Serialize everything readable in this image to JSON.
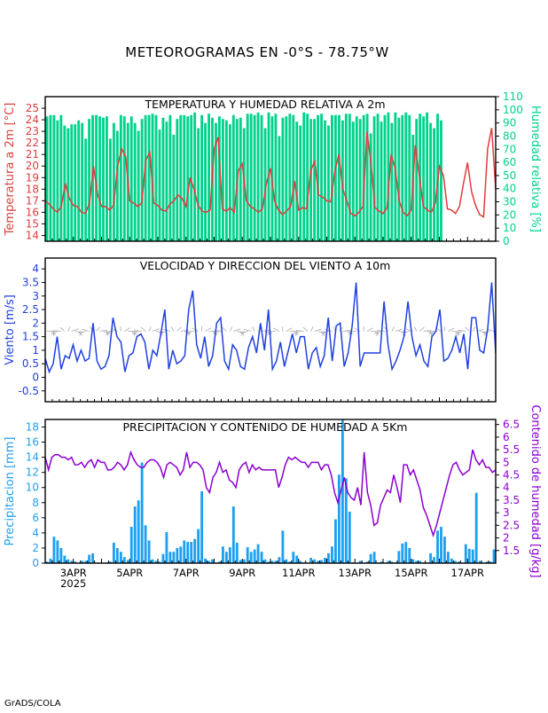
{
  "title": "METEOROGRAMAS EN -0°S - 78.75°W",
  "footer": "GrADS/COLA",
  "colors": {
    "temperature": "#e03c3c",
    "humidity": "#00d28c",
    "wind": "#2040e0",
    "wind_arrows": "#aaaaaa",
    "precip": "#1ea0f0",
    "moisture": "#8c00d2",
    "frame": "#000000"
  },
  "x_axis": {
    "ticks": [
      "3APR",
      "5APR",
      "7APR",
      "9APR",
      "11APR",
      "13APR",
      "15APR",
      "17APR"
    ],
    "year": "2025"
  },
  "chart_data": [
    {
      "type": "line",
      "title": "TEMPERATURA Y HUMEDAD RELATIVA A 2m",
      "ylabel": "Temperatura a 2m [°C]",
      "y2label": "Humedad relativa [%]",
      "ylim": [
        13.5,
        26
      ],
      "y2lim": [
        0,
        110
      ],
      "yticks": [
        "14",
        "15",
        "16",
        "17",
        "18",
        "19",
        "20",
        "21",
        "22",
        "23",
        "24",
        "25"
      ],
      "y2ticks": [
        "0",
        "10",
        "20",
        "30",
        "40",
        "50",
        "60",
        "70",
        "80",
        "90",
        "100",
        "110"
      ],
      "x_start_day": 2.0,
      "x_step_hours": 3,
      "series": [
        {
          "kind": "line",
          "axis": "left",
          "values": [
            17.0,
            16.7,
            16.3,
            16.0,
            16.5,
            18.5,
            17.2,
            16.6,
            16.5,
            16.0,
            15.9,
            16.8,
            20.0,
            17.6,
            16.5,
            16.5,
            16.2,
            16.6,
            20.0,
            21.5,
            20.8,
            17.0,
            16.8,
            16.5,
            16.8,
            20.5,
            21.2,
            16.8,
            16.6,
            16.2,
            16.1,
            16.7,
            17.0,
            17.5,
            17.2,
            16.5,
            19.0,
            18.0,
            16.6,
            16.1,
            16.0,
            16.2,
            21.5,
            22.5,
            16.3,
            16.1,
            16.4,
            16.0,
            19.6,
            20.2,
            17.0,
            16.5,
            16.3,
            16.0,
            16.3,
            18.5,
            19.8,
            17.0,
            16.2,
            15.8,
            16.1,
            16.5,
            18.7,
            16.2,
            16.4,
            16.3,
            19.6,
            20.4,
            17.5,
            17.3,
            17.0,
            16.9,
            19.5,
            21.0,
            18.0,
            17.0,
            15.9,
            15.7,
            16.0,
            16.5,
            23.0,
            20.2,
            16.4,
            16.1,
            15.9,
            16.4,
            21.0,
            19.8,
            17.0,
            16.0,
            15.7,
            16.2,
            21.8,
            19.2,
            16.5,
            16.2,
            16.0,
            16.8,
            20.0,
            19.2,
            16.3,
            16.2,
            15.9,
            16.5,
            18.5,
            20.3,
            17.8,
            16.6,
            15.8,
            15.6,
            21.5,
            23.3,
            18.0
          ]
        },
        {
          "kind": "bar",
          "axis": "right",
          "values": [
            95,
            96,
            96,
            92,
            96,
            88,
            86,
            89,
            89,
            92,
            90,
            78,
            93,
            96,
            96,
            95,
            94,
            95,
            78,
            90,
            84,
            96,
            95,
            90,
            95,
            90,
            84,
            93,
            96,
            96,
            97,
            96,
            85,
            94,
            91,
            96,
            81,
            93,
            96,
            96,
            95,
            96,
            98,
            86,
            96,
            90,
            97,
            94,
            90,
            95,
            93,
            92,
            89,
            96,
            93,
            94,
            86,
            97,
            97,
            96,
            98,
            96,
            86,
            98,
            95,
            97,
            80,
            94,
            95,
            97,
            96,
            91,
            88,
            98,
            97,
            93,
            93,
            96,
            97,
            92,
            88,
            96,
            96,
            96,
            92,
            97,
            97,
            91,
            95,
            93,
            96,
            97,
            82,
            95,
            97,
            91,
            96,
            98,
            90,
            98,
            94,
            96,
            98,
            96,
            81,
            93,
            97,
            95,
            98,
            90,
            86,
            97,
            92
          ]
        }
      ]
    },
    {
      "type": "line",
      "title": "VELOCIDAD Y DIRECCION DEL VIENTO A 10m",
      "ylabel": "Viento [m/s]",
      "ylim": [
        -0.9,
        4.4
      ],
      "yticks": [
        "-0.5",
        "0",
        "0.5",
        "1",
        "1.5",
        "2",
        "2.5",
        "3",
        "3.5",
        "4"
      ],
      "x_start_day": 2.0,
      "x_step_hours": 3,
      "series": [
        {
          "kind": "line",
          "values": [
            0.7,
            0.2,
            0.5,
            1.5,
            0.3,
            0.8,
            0.7,
            1.2,
            0.6,
            1.0,
            0.6,
            0.7,
            2.0,
            0.6,
            0.3,
            0.4,
            0.8,
            2.2,
            1.5,
            1.3,
            0.2,
            0.8,
            0.9,
            1.5,
            1.6,
            1.3,
            0.3,
            1.0,
            0.8,
            1.6,
            2.5,
            0.3,
            1.0,
            0.5,
            0.6,
            0.8,
            2.5,
            3.2,
            1.2,
            0.7,
            1.5,
            0.4,
            0.8,
            2.0,
            2.2,
            0.6,
            0.3,
            1.2,
            1.0,
            0.4,
            0.3,
            1.1,
            1.5,
            0.9,
            2.0,
            1.0,
            2.5,
            0.3,
            0.6,
            1.3,
            0.4,
            1.0,
            1.6,
            0.9,
            1.5,
            1.5,
            0.3,
            0.9,
            1.1,
            0.4,
            0.8,
            2.2,
            0.6,
            1.9,
            2.0,
            0.4,
            0.9,
            1.9,
            3.5,
            0.4,
            0.9,
            0.9,
            0.9,
            0.9,
            0.9,
            2.8,
            1.2,
            0.3,
            0.6,
            1.0,
            1.5,
            2.8,
            1.5,
            0.8,
            1.2,
            0.6,
            0.4,
            1.5,
            1.7,
            2.5,
            0.6,
            0.7,
            1.0,
            1.5,
            0.9,
            1.6,
            0.3,
            2.2,
            2.2,
            1.0,
            0.9,
            1.8,
            3.5,
            0.9
          ]
        }
      ]
    },
    {
      "type": "bar",
      "title": "PRECIPITACION Y CONTENIDO DE HUMEDAD A 5Km",
      "ylabel": "Precipitacion [mm]",
      "y2label": "Contenido de humedad [g/kg]",
      "ylim": [
        0,
        19
      ],
      "y2lim": [
        1.0,
        6.7
      ],
      "yticks": [
        "0",
        "2",
        "4",
        "6",
        "8",
        "10",
        "12",
        "14",
        "16",
        "18"
      ],
      "y2ticks": [
        "1.5",
        "2",
        "2.5",
        "3",
        "3.5",
        "4",
        "4.5",
        "5",
        "5.5",
        "6",
        "6.5"
      ],
      "x_start_day": 2.0,
      "x_step_hours": 3,
      "series": [
        {
          "kind": "bar",
          "axis": "left",
          "values": [
            0.2,
            0.6,
            3.5,
            3.0,
            2.0,
            1.0,
            0.5,
            0.3,
            0.2,
            0,
            0.3,
            0.3,
            1.1,
            1.3,
            0,
            0,
            0,
            0.1,
            0.2,
            2.7,
            2.0,
            1.5,
            0.8,
            0.4,
            4.8,
            7.5,
            8.3,
            13.3,
            5.0,
            3.0,
            0.5,
            0.3,
            0.2,
            1.2,
            4.1,
            1.5,
            1.5,
            2.0,
            2.2,
            3.0,
            2.8,
            2.8,
            3.2,
            4.5,
            9.5,
            0.6,
            0.3,
            0.5,
            0,
            0.2,
            2.2,
            1.5,
            2.1,
            7.5,
            2.7,
            0.4,
            0.5,
            2.1,
            1.5,
            1.8,
            2.5,
            1.5,
            0.5,
            0.2,
            0.3,
            0.3,
            0.8,
            4.3,
            0.5,
            0.2,
            1.5,
            1.0,
            0.3,
            0.1,
            0,
            0.7,
            0.5,
            0.3,
            0.4,
            0.7,
            1.3,
            2.2,
            5.8,
            11.7,
            19.0,
            11.2,
            6.8,
            0.1,
            0,
            0.3,
            0,
            0.2,
            1.2,
            1.5,
            0,
            0.2,
            0,
            0.3,
            0.2,
            0.1,
            1.6,
            2.6,
            2.8,
            2.0,
            0.5,
            0.3,
            0.3,
            0.1,
            0.1,
            1.3,
            0.8,
            4.3,
            4.8,
            3.5,
            1.5,
            0.6,
            0.3,
            0.2,
            0,
            2.5,
            1.9,
            1.8,
            9.3,
            0.3,
            0,
            0.2,
            0.2,
            1.8,
            3.2,
            1.8,
            0.3,
            0.2,
            0.1,
            0.2,
            3.3,
            3.0
          ]
        },
        {
          "kind": "line",
          "axis": "right",
          "values": [
            5.2,
            4.7,
            5.2,
            5.3,
            5.3,
            5.2,
            5.2,
            5.1,
            5.2,
            4.9,
            4.9,
            5.0,
            4.8,
            5.0,
            5.1,
            4.8,
            5.1,
            5.0,
            5.0,
            4.7,
            4.7,
            4.8,
            5.0,
            4.9,
            4.7,
            4.9,
            5.4,
            5.1,
            4.9,
            4.8,
            4.8,
            5.0,
            5.1,
            5.1,
            5.0,
            4.8,
            4.4,
            4.9,
            5.0,
            4.9,
            4.8,
            4.5,
            4.7,
            5.4,
            4.8,
            5.0,
            5.0,
            4.9,
            4.7,
            4.0,
            3.8,
            4.4,
            4.6,
            5.0,
            4.6,
            4.7,
            4.3,
            4.2,
            4.0,
            4.7,
            4.9,
            5.0,
            4.6,
            4.9,
            4.7,
            4.8,
            4.7,
            4.7,
            4.7,
            4.7,
            4.7,
            4.0,
            4.4,
            4.9,
            5.2,
            5.1,
            5.2,
            5.1,
            5.0,
            5.0,
            4.8,
            5.0,
            5.0,
            5.0,
            4.7,
            4.9,
            4.9,
            4.5,
            3.8,
            3.4,
            3.9,
            4.4,
            3.8,
            3.6,
            3.5,
            4.0,
            3.3,
            5.4,
            3.8,
            3.3,
            2.5,
            2.6,
            3.3,
            3.6,
            3.9,
            3.8,
            4.5,
            4.0,
            3.4,
            4.9,
            4.9,
            4.5,
            4.7,
            4.3,
            3.9,
            3.2,
            2.9,
            2.5,
            2.1,
            2.5,
            3.0,
            3.5,
            4.0,
            4.5,
            4.9,
            5.0,
            4.7,
            4.5,
            4.6,
            4.7,
            5.5,
            5.1,
            4.9,
            5.1,
            4.8,
            4.8,
            4.6,
            4.7
          ]
        }
      ]
    }
  ]
}
